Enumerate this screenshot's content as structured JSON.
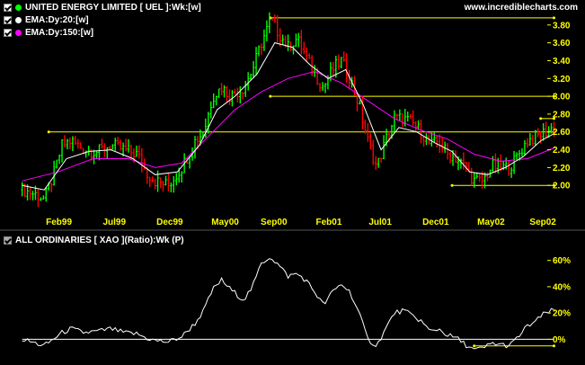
{
  "site": "www.incrediblecharts.com",
  "colors": {
    "background": "#000000",
    "up_bar": "#00ff00",
    "down_bar": "#ff0000",
    "ema20": "#ffffff",
    "ema150": "#ff00ff",
    "level_lines": "#ffff00",
    "axis_labels": "#ffff00",
    "ratio_line": "#ffffff"
  },
  "legend": {
    "price_series": {
      "label": "UNITED ENERGY LIMITED [ UEL ]:Wk:[w]",
      "dot_color": "#00ff00"
    },
    "ema20": {
      "label": "EMA:Dy:20:[w]",
      "dot_color": "#ffffff"
    },
    "ema150": {
      "label": "EMA:Dy:150:[w]",
      "dot_color": "#ff00ff"
    },
    "ratio": {
      "label": "ALL ORDINARIES [ XAO ](Ratio):Wk (P)"
    }
  },
  "chart_data": [
    {
      "type": "bar",
      "subtype": "weekly-ohlc-with-ema",
      "x_tick_labels": [
        "Feb99",
        "Jul99",
        "Dec99",
        "May00",
        "Sep00",
        "Feb01",
        "Jul01",
        "Dec01",
        "May02",
        "Sep02"
      ],
      "x_tick_positions": [
        0.083,
        0.208,
        0.333,
        0.458,
        0.568,
        0.692,
        0.808,
        0.933,
        1.058,
        1.175
      ],
      "x_range": [
        -0.05,
        1.27
      ],
      "y_tick_labels": [
        "2.00",
        "2.20",
        "2.40",
        "2.60",
        "2.80",
        "3.00",
        "3.20",
        "3.40",
        "3.60",
        "3.80"
      ],
      "ylim": [
        1.78,
        4.0
      ],
      "price_path": [
        [
          0.0,
          1.95
        ],
        [
          0.03,
          1.9
        ],
        [
          0.05,
          1.85
        ],
        [
          0.07,
          2.1
        ],
        [
          0.09,
          2.45
        ],
        [
          0.11,
          2.5
        ],
        [
          0.14,
          2.4
        ],
        [
          0.17,
          2.38
        ],
        [
          0.2,
          2.45
        ],
        [
          0.23,
          2.4
        ],
        [
          0.26,
          2.35
        ],
        [
          0.28,
          2.15
        ],
        [
          0.3,
          2.05
        ],
        [
          0.33,
          2.0
        ],
        [
          0.36,
          2.2
        ],
        [
          0.39,
          2.5
        ],
        [
          0.41,
          2.6
        ],
        [
          0.43,
          3.0
        ],
        [
          0.45,
          3.1
        ],
        [
          0.47,
          3.0
        ],
        [
          0.5,
          3.1
        ],
        [
          0.52,
          3.3
        ],
        [
          0.54,
          3.6
        ],
        [
          0.56,
          3.85
        ],
        [
          0.58,
          3.7
        ],
        [
          0.6,
          3.55
        ],
        [
          0.62,
          3.65
        ],
        [
          0.64,
          3.45
        ],
        [
          0.66,
          3.25
        ],
        [
          0.68,
          3.1
        ],
        [
          0.7,
          3.3
        ],
        [
          0.72,
          3.4
        ],
        [
          0.74,
          3.2
        ],
        [
          0.76,
          2.9
        ],
        [
          0.78,
          2.5
        ],
        [
          0.8,
          2.2
        ],
        [
          0.82,
          2.5
        ],
        [
          0.84,
          2.75
        ],
        [
          0.86,
          2.75
        ],
        [
          0.88,
          2.7
        ],
        [
          0.9,
          2.6
        ],
        [
          0.92,
          2.45
        ],
        [
          0.94,
          2.5
        ],
        [
          0.96,
          2.35
        ],
        [
          0.98,
          2.3
        ],
        [
          1.0,
          2.2
        ],
        [
          1.02,
          2.05
        ],
        [
          1.04,
          2.05
        ],
        [
          1.06,
          2.22
        ],
        [
          1.08,
          2.2
        ],
        [
          1.1,
          2.2
        ],
        [
          1.12,
          2.35
        ],
        [
          1.14,
          2.5
        ],
        [
          1.16,
          2.55
        ],
        [
          1.18,
          2.6
        ],
        [
          1.2,
          2.65
        ]
      ],
      "ema20_path": [
        [
          0.0,
          2.0
        ],
        [
          0.05,
          1.95
        ],
        [
          0.1,
          2.3
        ],
        [
          0.15,
          2.38
        ],
        [
          0.2,
          2.4
        ],
        [
          0.25,
          2.3
        ],
        [
          0.3,
          2.12
        ],
        [
          0.35,
          2.15
        ],
        [
          0.4,
          2.45
        ],
        [
          0.44,
          2.85
        ],
        [
          0.48,
          3.0
        ],
        [
          0.53,
          3.25
        ],
        [
          0.57,
          3.6
        ],
        [
          0.61,
          3.55
        ],
        [
          0.65,
          3.35
        ],
        [
          0.69,
          3.2
        ],
        [
          0.73,
          3.3
        ],
        [
          0.77,
          2.9
        ],
        [
          0.81,
          2.4
        ],
        [
          0.85,
          2.65
        ],
        [
          0.89,
          2.6
        ],
        [
          0.93,
          2.48
        ],
        [
          0.97,
          2.38
        ],
        [
          1.01,
          2.15
        ],
        [
          1.05,
          2.12
        ],
        [
          1.09,
          2.2
        ],
        [
          1.13,
          2.32
        ],
        [
          1.17,
          2.5
        ],
        [
          1.2,
          2.58
        ]
      ],
      "ema150_path": [
        [
          0.0,
          2.05
        ],
        [
          0.08,
          2.15
        ],
        [
          0.16,
          2.3
        ],
        [
          0.24,
          2.3
        ],
        [
          0.3,
          2.2
        ],
        [
          0.36,
          2.25
        ],
        [
          0.42,
          2.55
        ],
        [
          0.48,
          2.85
        ],
        [
          0.54,
          3.05
        ],
        [
          0.6,
          3.2
        ],
        [
          0.66,
          3.28
        ],
        [
          0.72,
          3.15
        ],
        [
          0.78,
          2.95
        ],
        [
          0.84,
          2.75
        ],
        [
          0.9,
          2.62
        ],
        [
          0.96,
          2.52
        ],
        [
          1.02,
          2.35
        ],
        [
          1.08,
          2.27
        ],
        [
          1.14,
          2.3
        ],
        [
          1.2,
          2.42
        ]
      ],
      "horizontal_lines": [
        {
          "y": 3.88,
          "x_from": 0.56,
          "x_to": 1.2
        },
        {
          "y": 3.0,
          "x_from": 0.56,
          "x_to": 1.2
        },
        {
          "y": 2.6,
          "x_from": 0.06,
          "x_to": 1.2
        },
        {
          "y": 2.0,
          "x_from": 0.97,
          "x_to": 1.2
        },
        {
          "y": 2.75,
          "x_from": 1.17,
          "x_to": 1.2
        }
      ],
      "grid": false,
      "legend_position": "top-left"
    },
    {
      "type": "line",
      "title": "ALL ORDINARIES [ XAO ](Ratio):Wk (P)",
      "y_tick_labels": [
        "0%",
        "20%",
        "40%",
        "60%"
      ],
      "ylim": [
        -10,
        68
      ],
      "ratio_path": [
        [
          0.0,
          0
        ],
        [
          0.03,
          -3
        ],
        [
          0.05,
          -5
        ],
        [
          0.07,
          0
        ],
        [
          0.09,
          5
        ],
        [
          0.11,
          8
        ],
        [
          0.14,
          5
        ],
        [
          0.17,
          6
        ],
        [
          0.2,
          8
        ],
        [
          0.23,
          5
        ],
        [
          0.26,
          4
        ],
        [
          0.28,
          1
        ],
        [
          0.3,
          -1
        ],
        [
          0.33,
          -2
        ],
        [
          0.36,
          2
        ],
        [
          0.39,
          12
        ],
        [
          0.41,
          22
        ],
        [
          0.43,
          38
        ],
        [
          0.45,
          45
        ],
        [
          0.47,
          38
        ],
        [
          0.5,
          30
        ],
        [
          0.52,
          40
        ],
        [
          0.54,
          58
        ],
        [
          0.56,
          63
        ],
        [
          0.58,
          56
        ],
        [
          0.6,
          48
        ],
        [
          0.62,
          50
        ],
        [
          0.64,
          45
        ],
        [
          0.66,
          36
        ],
        [
          0.68,
          26
        ],
        [
          0.7,
          36
        ],
        [
          0.72,
          42
        ],
        [
          0.74,
          36
        ],
        [
          0.76,
          20
        ],
        [
          0.78,
          0
        ],
        [
          0.8,
          -5
        ],
        [
          0.82,
          8
        ],
        [
          0.84,
          20
        ],
        [
          0.86,
          22
        ],
        [
          0.88,
          18
        ],
        [
          0.9,
          14
        ],
        [
          0.92,
          6
        ],
        [
          0.94,
          8
        ],
        [
          0.96,
          3
        ],
        [
          0.98,
          1
        ],
        [
          1.0,
          -4
        ],
        [
          1.02,
          -8
        ],
        [
          1.04,
          -7
        ],
        [
          1.06,
          -3
        ],
        [
          1.08,
          -4
        ],
        [
          1.1,
          -5
        ],
        [
          1.12,
          2
        ],
        [
          1.14,
          10
        ],
        [
          1.16,
          14
        ],
        [
          1.18,
          20
        ],
        [
          1.2,
          22
        ]
      ],
      "horizontal_lines": [
        {
          "y": 0,
          "x_from": 0.0,
          "x_to": 1.2
        },
        {
          "y": -5,
          "x_from": 1.02,
          "x_to": 1.2
        }
      ],
      "grid": false
    }
  ]
}
